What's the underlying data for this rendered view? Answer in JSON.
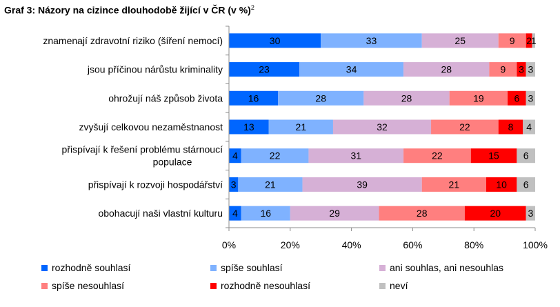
{
  "header": {
    "title": "Graf 3: Názory na cizince dlouhodobě žijící v ČR (v %)",
    "footnote_mark": "2"
  },
  "chart_data": {
    "type": "bar",
    "orientation": "horizontal",
    "stacked": "percent",
    "categories": [
      "znamenají zdravotní riziko (šíření nemocí)",
      "jsou příčinou nárůstu kriminality",
      "ohrožují náš způsob života",
      "zvyšují celkovou nezaměstnanost",
      "přispívají k řešení problému stárnoucí populace",
      "přispívají  k rozvoji hospodářství",
      "obohacují naši vlastní kulturu"
    ],
    "category_lines": [
      [
        "znamenají zdravotní riziko (šíření nemocí)"
      ],
      [
        "jsou příčinou nárůstu kriminality"
      ],
      [
        "ohrožují náš způsob života"
      ],
      [
        "zvyšují celkovou nezaměstnanost"
      ],
      [
        "přispívají k řešení problému stárnoucí",
        "populace"
      ],
      [
        "přispívají  k rozvoji hospodářství"
      ],
      [
        "obohacují naši vlastní kulturu"
      ]
    ],
    "series": [
      {
        "name": "rozhodně souhlasí",
        "color": "#0066ff",
        "values": [
          30,
          23,
          16,
          13,
          4,
          3,
          4
        ]
      },
      {
        "name": "spíše souhlasí",
        "color": "#7fb2ff",
        "values": [
          33,
          34,
          28,
          21,
          22,
          21,
          16
        ]
      },
      {
        "name": "ani souhlas, ani nesouhlas",
        "color": "#d6b0d6",
        "values": [
          25,
          28,
          28,
          32,
          31,
          39,
          29
        ]
      },
      {
        "name": "spíše nesouhlasí",
        "color": "#ff7f7f",
        "values": [
          9,
          9,
          19,
          22,
          22,
          21,
          28
        ]
      },
      {
        "name": "rozhodně nesouhlasí",
        "color": "#ff0000",
        "values": [
          2,
          3,
          6,
          8,
          15,
          10,
          20
        ]
      },
      {
        "name": "neví",
        "color": "#c0c0c0",
        "values": [
          1,
          3,
          3,
          4,
          6,
          6,
          3
        ]
      }
    ],
    "data_labels": [
      [
        "30",
        "33",
        "25",
        "9",
        "2",
        "1"
      ],
      [
        "23",
        "34",
        "28",
        "9",
        "3",
        "3"
      ],
      [
        "16",
        "28",
        "28",
        "19",
        "6",
        "3"
      ],
      [
        "13",
        "21",
        "32",
        "22",
        "8",
        "4"
      ],
      [
        "4",
        "22",
        "31",
        "22",
        "15",
        "6"
      ],
      [
        "3",
        "21",
        "39",
        "21",
        "10",
        "6"
      ],
      [
        "4",
        "16",
        "29",
        "28",
        "20",
        "3"
      ]
    ],
    "x_ticks": [
      "0%",
      "20%",
      "40%",
      "60%",
      "80%",
      "100%"
    ],
    "xlim": [
      0,
      100
    ],
    "grid": false,
    "legend_position": "bottom"
  }
}
